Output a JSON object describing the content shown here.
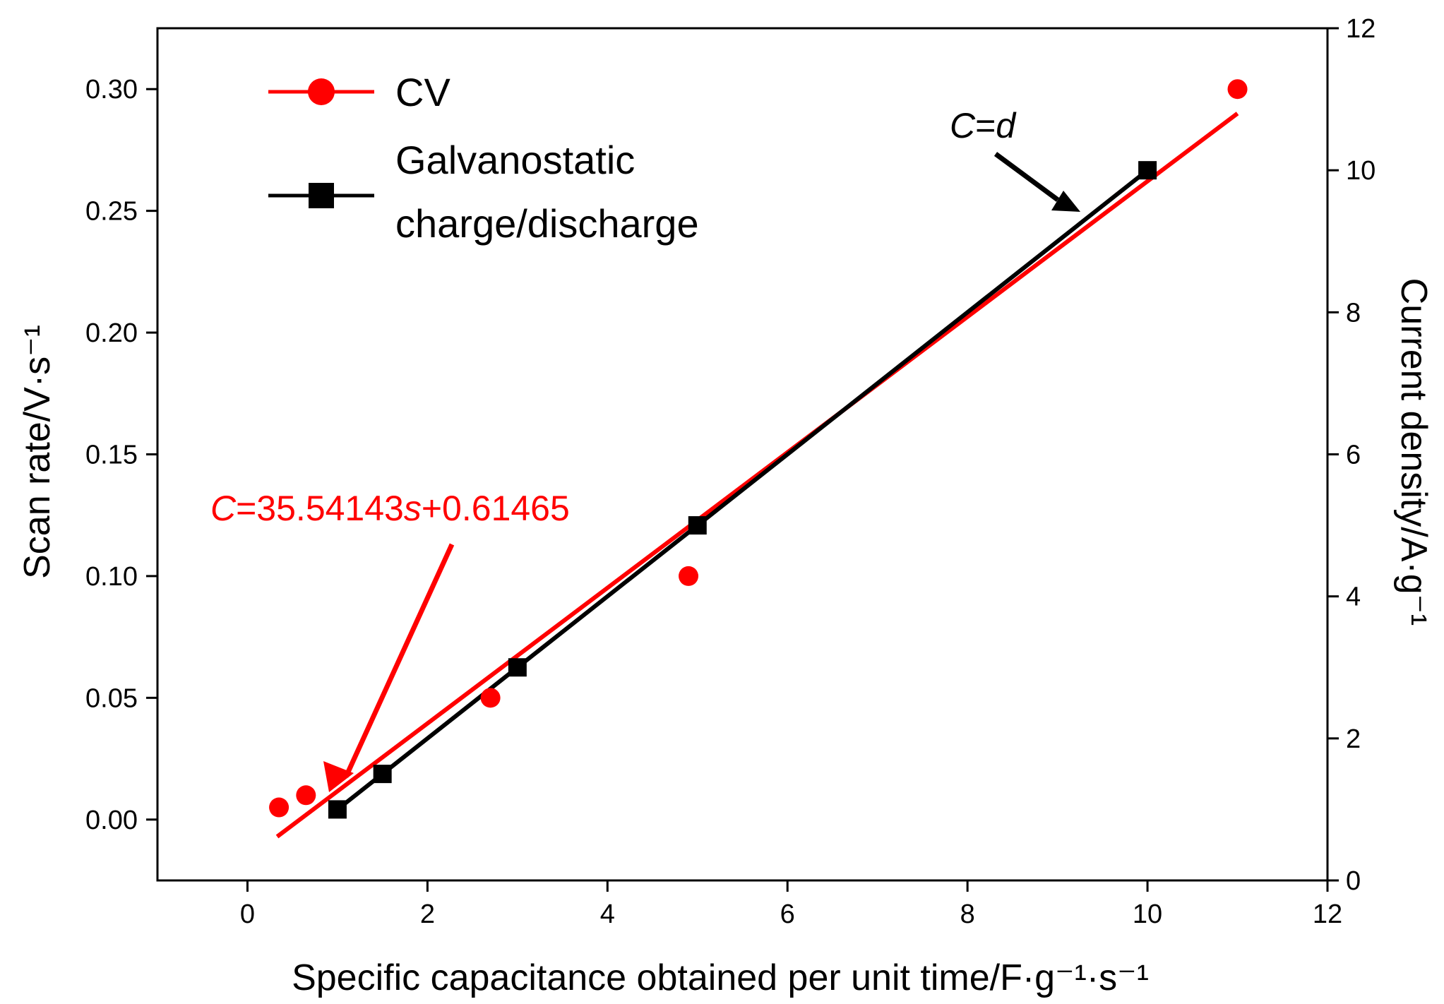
{
  "chart_data": {
    "type": "scatter",
    "xlabel": "Specific capacitance obtained per unit time/F·g⁻¹·s⁻¹",
    "ylabel_left": "Scan rate/V·s⁻¹",
    "ylabel_right": "Current density/A·g⁻¹",
    "xlim": [
      -1,
      12
    ],
    "ylim_left": [
      -0.025,
      0.325
    ],
    "ylim_right": [
      0,
      12
    ],
    "x_ticks": [
      0,
      2,
      4,
      6,
      8,
      10,
      12
    ],
    "y_left_ticks": [
      0.0,
      0.05,
      0.1,
      0.15,
      0.2,
      0.25,
      0.3
    ],
    "y_left_tick_labels": [
      "0.00",
      "0.05",
      "0.10",
      "0.15",
      "0.20",
      "0.25",
      "0.30"
    ],
    "y_right_ticks": [
      0,
      2,
      4,
      6,
      8,
      10,
      12
    ],
    "grid": false,
    "legend_position": "top-left",
    "series": [
      {
        "name": "CV",
        "axis": "left",
        "color": "#ff0000",
        "marker": "circle",
        "points": [
          [
            0.35,
            0.005
          ],
          [
            0.65,
            0.01
          ],
          [
            2.7,
            0.05
          ],
          [
            4.9,
            0.1
          ],
          [
            11.0,
            0.3
          ]
        ],
        "fit_line": {
          "x_range": [
            0.33,
            11.0
          ],
          "y_range": [
            -0.007,
            0.29
          ]
        }
      },
      {
        "name": "Galvanostatic charge/discharge",
        "legend_lines": [
          "Galvanostatic",
          "charge/discharge"
        ],
        "axis": "right",
        "color": "#000000",
        "marker": "square",
        "points": [
          [
            1.0,
            1.0
          ],
          [
            1.5,
            1.5
          ],
          [
            3.0,
            3.0
          ],
          [
            5.0,
            5.0
          ],
          [
            10.0,
            10.0
          ]
        ]
      }
    ],
    "annotations": [
      {
        "text_parts": [
          "C",
          "=35.54143",
          "s",
          "+0.61465"
        ],
        "color": "#ff0000"
      },
      {
        "text_parts": [
          "C",
          "=",
          "d"
        ],
        "color": "#000000"
      }
    ]
  }
}
